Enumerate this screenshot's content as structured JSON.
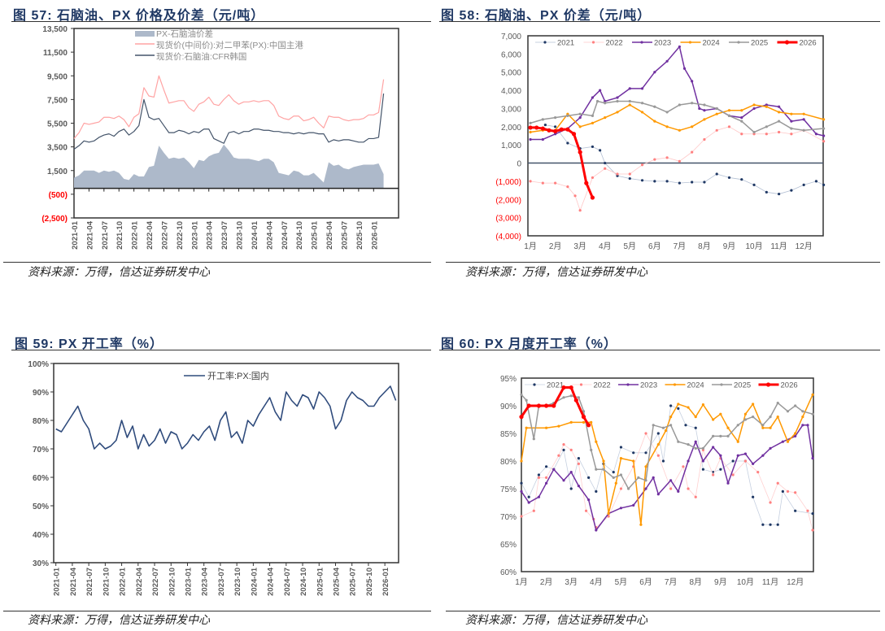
{
  "panels": {
    "fig57": {
      "title": "图 57:  石脑油、PX 价格及价差（元/吨）",
      "source": "资料来源：万得，信达证券研发中心"
    },
    "fig58": {
      "title": "图 58:  石脑油、PX 价差（元/吨）",
      "source": "资料来源：万得，信达证券研发中心"
    },
    "fig59": {
      "title": "图 59:  PX 开工率（%）",
      "source": "资料来源：万得，信达证券研发中心"
    },
    "fig60": {
      "title": "图 60:  PX 月度开工率（%）",
      "source": "资料来源：万得，信达证券研发中心"
    }
  },
  "chart_data": [
    {
      "id": "c57",
      "type": "line",
      "title": "石脑油、PX 价格及价差（元/吨）",
      "ylim": [
        -2500,
        13500
      ],
      "ytick_values": [
        13500,
        11500,
        9500,
        7500,
        5500,
        3500,
        1500,
        -500,
        -2500
      ],
      "ytick_labels": [
        "13,500",
        "11,500",
        "9,500",
        "7,500",
        "5,500",
        "3,500",
        "1,500",
        "(500)",
        "(2,500)"
      ],
      "xtick_labels": [
        "2021-01",
        "2021-04",
        "2021-07",
        "2021-10",
        "2022-01",
        "2022-04",
        "2022-07",
        "2022-10",
        "2023-01",
        "2023-04",
        "2023-07",
        "2023-10",
        "2024-01",
        "2024-04",
        "2024-07",
        "2024-10",
        "2025-01",
        "2025-04",
        "2025-07",
        "2025-10",
        "2026-01"
      ],
      "legend": [
        "PX-石脑油价差",
        "现货价(中间价):对二甲苯(PX):中国主港",
        "现货价:石脑油:CFR韩国"
      ],
      "colors": {
        "spread": "#adb9ca",
        "px": "#ffa3a3",
        "naphtha": "#44546a"
      },
      "px": [
        4200,
        4700,
        5500,
        5400,
        5500,
        5600,
        6000,
        6000,
        5900,
        6100,
        5800,
        5200,
        6000,
        6300,
        8500,
        7800,
        7700,
        9500,
        8300,
        7200,
        7300,
        7400,
        7400,
        6800,
        6500,
        7100,
        7300,
        7700,
        7100,
        7000,
        7500,
        7900,
        7400,
        7100,
        7300,
        7300,
        7400,
        7300,
        7400,
        7400,
        7000,
        6100,
        5900,
        5800,
        6100,
        6100,
        5700,
        5800,
        6000,
        5500,
        5100,
        6100,
        6000,
        6000,
        5800,
        5700,
        5800,
        5800,
        5900,
        6200,
        6200,
        6400,
        9200
      ],
      "naphtha": [
        3300,
        3600,
        4000,
        3900,
        4000,
        4300,
        4500,
        4600,
        4400,
        4800,
        5000,
        4500,
        4800,
        5300,
        7500,
        6000,
        5800,
        5900,
        5300,
        4700,
        4700,
        4900,
        4800,
        4600,
        4800,
        4700,
        5000,
        5000,
        4200,
        4000,
        3800,
        4700,
        4800,
        4600,
        4800,
        4800,
        5000,
        5000,
        4900,
        4900,
        4800,
        4800,
        4700,
        4700,
        4600,
        4700,
        4600,
        4700,
        4700,
        4600,
        4600,
        3900,
        4100,
        4000,
        4100,
        4100,
        4000,
        3900,
        3900,
        4200,
        4200,
        4300,
        8000
      ]
    },
    {
      "id": "c58",
      "type": "line",
      "title": "石脑油、PX 价差（元/吨）",
      "ylim": [
        -4000,
        7000
      ],
      "ytick_values": [
        7000,
        6000,
        5000,
        4000,
        3000,
        2000,
        1000,
        0,
        -1000,
        -2000,
        -3000,
        -4000
      ],
      "ytick_labels": [
        "7,000",
        "6,000",
        "5,000",
        "4,000",
        "3,000",
        "2,000",
        "1,000",
        "0",
        "(1,000)",
        "(2,000)",
        "(3,000)",
        "(4,000)"
      ],
      "xtick_labels": [
        "1月",
        "2月",
        "3月",
        "4月",
        "5月",
        "6月",
        "7月",
        "8月",
        "9月",
        "10月",
        "11月",
        "12月"
      ],
      "series": [
        {
          "name": "2021",
          "line_color": "#b4c0d4",
          "marker_color": "#1f3864",
          "x": [
            1.6,
            2,
            2.5,
            3,
            3.5,
            3.8,
            4,
            4.5,
            5,
            5.5,
            6,
            6.5,
            7,
            7.5,
            8,
            8.5,
            9,
            9.5,
            10,
            10.5,
            11,
            11.5,
            12,
            12.5,
            12.8
          ],
          "y": [
            2100,
            2000,
            1100,
            800,
            900,
            700,
            0,
            -700,
            -850,
            -950,
            -1000,
            -1000,
            -1100,
            -1050,
            -1050,
            -600,
            -800,
            -900,
            -1200,
            -1600,
            -1700,
            -1500,
            -1200,
            -1000,
            -1200
          ]
        },
        {
          "name": "2022",
          "line_color": "#ffc7c7",
          "marker_color": "#ff8080",
          "x": [
            1,
            1.5,
            2,
            2.5,
            2.8,
            3,
            3.5,
            4,
            4.5,
            5,
            5.5,
            6,
            6.5,
            7,
            7.5,
            8,
            8.5,
            9,
            9.5,
            10,
            10.5,
            11,
            11.5,
            12,
            12.8
          ],
          "y": [
            -1000,
            -1100,
            -1100,
            -1300,
            -1800,
            -2600,
            -800,
            -300,
            -600,
            -600,
            -100,
            200,
            300,
            100,
            600,
            1300,
            1800,
            2000,
            1600,
            1600,
            1600,
            1700,
            1600,
            1800,
            1200
          ]
        },
        {
          "name": "2023",
          "line_color": "#7030a0",
          "marker_color": "#7030a0",
          "x": [
            1,
            1.5,
            2,
            2.5,
            3,
            3.5,
            3.8,
            4,
            4.5,
            5,
            5.5,
            6,
            6.5,
            7,
            7.2,
            7.5,
            7.8,
            8,
            8.5,
            9,
            9.5,
            10,
            10.5,
            11,
            11.5,
            12,
            12.5,
            12.8
          ],
          "y": [
            1300,
            1300,
            1600,
            1900,
            2500,
            3600,
            4000,
            3400,
            3600,
            4100,
            4100,
            5000,
            5600,
            6400,
            5200,
            4500,
            3000,
            2900,
            3000,
            2600,
            2500,
            3000,
            3200,
            3100,
            2300,
            2400,
            1600,
            1500
          ]
        },
        {
          "name": "2024",
          "line_color": "#ff9900",
          "marker_color": "#ff9900",
          "x": [
            1,
            1.5,
            2,
            2.5,
            3,
            3.5,
            4,
            4.5,
            5,
            5.5,
            6,
            6.5,
            7,
            7.5,
            8,
            8.5,
            9,
            9.5,
            10,
            10.5,
            11,
            11.5,
            12,
            12.8
          ],
          "y": [
            1700,
            1800,
            1800,
            2700,
            2000,
            2200,
            2500,
            2800,
            3200,
            2800,
            2300,
            2000,
            1800,
            2000,
            2400,
            2700,
            2900,
            2900,
            3200,
            3100,
            2800,
            2700,
            2700,
            2400
          ]
        },
        {
          "name": "2025",
          "line_color": "#999999",
          "marker_color": "#999999",
          "x": [
            1,
            1.5,
            2,
            2.5,
            3,
            3.5,
            3.7,
            4,
            4.5,
            5,
            5.5,
            6,
            6.5,
            7,
            7.5,
            8,
            8.5,
            9,
            9.5,
            10,
            10.5,
            11,
            11.5,
            12,
            12.8
          ],
          "y": [
            2200,
            2400,
            2500,
            2600,
            2700,
            2600,
            3400,
            3300,
            3400,
            3400,
            3300,
            3100,
            2800,
            3200,
            3300,
            3200,
            3000,
            2600,
            2300,
            1700,
            2000,
            2300,
            1900,
            1800,
            1900
          ]
        },
        {
          "name": "2026",
          "line_color": "#ff0000",
          "marker_color": "#ff0000",
          "x": [
            1,
            1.25,
            1.5,
            1.75,
            2,
            2.25,
            2.5,
            2.75,
            3,
            3.25,
            3.5
          ],
          "y": [
            1950,
            1950,
            1900,
            1800,
            1750,
            1850,
            1850,
            1600,
            600,
            -1100,
            -1900
          ]
        }
      ]
    },
    {
      "id": "c59",
      "type": "line",
      "title": "PX 开工率（%）",
      "ylim": [
        30,
        100
      ],
      "ytick_values": [
        100,
        90,
        80,
        70,
        60,
        50,
        40,
        30
      ],
      "ytick_labels": [
        "100%",
        "90%",
        "80%",
        "70%",
        "60%",
        "50%",
        "40%",
        "30%"
      ],
      "xtick_labels": [
        "2021-01",
        "2021-04",
        "2021-07",
        "2021-10",
        "2022-01",
        "2022-04",
        "2022-07",
        "2022-10",
        "2023-01",
        "2023-04",
        "2023-07",
        "2023-10",
        "2024-01",
        "2024-04",
        "2024-07",
        "2024-10",
        "2025-01",
        "2025-04",
        "2025-07",
        "2025-10",
        "2026-01"
      ],
      "legend": [
        "开工率:PX:国内"
      ],
      "color": "#2f4b7c",
      "values": [
        77,
        76,
        79,
        82,
        85,
        80,
        77,
        70,
        72,
        70,
        71,
        73,
        80,
        74,
        78,
        70,
        75,
        71,
        73,
        77,
        72,
        76,
        75,
        70,
        72,
        75,
        73,
        76,
        78,
        73,
        80,
        83,
        74,
        76,
        72,
        80,
        78,
        82,
        85,
        88,
        83,
        80,
        90,
        87,
        85,
        89,
        88,
        84,
        90,
        88,
        85,
        77,
        80,
        87,
        90,
        88,
        87,
        85,
        85,
        88,
        90,
        92,
        87
      ]
    },
    {
      "id": "c60",
      "type": "line",
      "title": "PX 月度开工率（%）",
      "ylim": [
        60,
        95
      ],
      "ytick_values": [
        95,
        90,
        85,
        80,
        75,
        70,
        65,
        60
      ],
      "ytick_labels": [
        "95%",
        "90%",
        "85%",
        "80%",
        "75%",
        "70%",
        "65%",
        "60%"
      ],
      "xtick_labels": [
        "1月",
        "2月",
        "3月",
        "4月",
        "5月",
        "6月",
        "7月",
        "8月",
        "9月",
        "10月",
        "11月",
        "12月"
      ],
      "series": [
        {
          "name": "2021",
          "line_color": "#c6d0e0",
          "marker_color": "#1f3864",
          "x": [
            1,
            1.3,
            1.7,
            2,
            2.3,
            2.7,
            3,
            3.3,
            3.7,
            4,
            4.3,
            4.7,
            5,
            5.5,
            6,
            6.5,
            6.7,
            7,
            7.3,
            7.6,
            8,
            8.3,
            8.7,
            9,
            9.5,
            10,
            10.3,
            10.7,
            11,
            11.3,
            11.5,
            12,
            12.7
          ],
          "y": [
            76,
            73.5,
            77.5,
            79,
            78.5,
            82,
            75,
            80.5,
            77,
            74.5,
            79.5,
            78,
            82.5,
            81.5,
            81.5,
            85,
            80,
            90,
            89.5,
            86.5,
            86,
            78.5,
            78,
            78.5,
            80,
            80,
            73.5,
            68.5,
            68.5,
            68.5,
            74.5,
            71,
            70.5
          ]
        },
        {
          "name": "2022",
          "line_color": "#ffd0d0",
          "marker_color": "#ff8080",
          "x": [
            1,
            1.5,
            1.7,
            2,
            2.5,
            2.7,
            3,
            3.3,
            3.6,
            3.9,
            4,
            4.5,
            5,
            5.5,
            6,
            6.5,
            7,
            7.5,
            7.7,
            8,
            8.3,
            8.7,
            9,
            9.5,
            10,
            10.5,
            11,
            11.3,
            11.7,
            12,
            12.5,
            12.7
          ],
          "y": [
            70,
            71,
            77,
            77,
            81,
            83,
            82,
            79.5,
            71,
            69.5,
            68,
            70,
            75,
            79,
            85,
            81,
            75,
            79,
            75,
            73.5,
            82,
            77.5,
            80.5,
            77.5,
            80,
            78,
            72.5,
            76,
            74.5,
            74.3,
            71,
            67.5
          ]
        },
        {
          "name": "2023",
          "line_color": "#7030a0",
          "marker_color": "#7030a0",
          "x": [
            1,
            1.3,
            1.7,
            2,
            2.3,
            2.7,
            3,
            3.3,
            3.7,
            4,
            4.5,
            5,
            5.5,
            6,
            6.3,
            6.5,
            7,
            7.3,
            7.7,
            8,
            8.3,
            8.7,
            9,
            9.3,
            9.7,
            10,
            10.3,
            10.7,
            11,
            11.5,
            12,
            12.3,
            12.5,
            12.7
          ],
          "y": [
            74.5,
            72.5,
            73.5,
            76,
            78.5,
            76.5,
            78,
            75.5,
            73,
            67.5,
            70.5,
            71.5,
            72,
            75,
            77,
            74,
            76.5,
            74.5,
            80,
            83.5,
            80,
            82.5,
            81,
            76,
            81,
            81.3,
            79.5,
            81,
            82.3,
            83.5,
            84.5,
            86.5,
            86.5,
            80.5
          ]
        },
        {
          "name": "2024",
          "line_color": "#ff9900",
          "marker_color": "#ff9900",
          "x": [
            1,
            1.2,
            2,
            2.5,
            3,
            3.5,
            3.8,
            4,
            4.3,
            4.5,
            4.8,
            5,
            5.5,
            5.8,
            6,
            6.5,
            6.8,
            7,
            7.3,
            7.7,
            8,
            8.3,
            8.7,
            9,
            9.3,
            9.7,
            10,
            10.3,
            10.7,
            11,
            11.3,
            11.7,
            12,
            12.3,
            12.7
          ],
          "y": [
            80,
            86,
            86,
            86.3,
            87,
            87,
            87,
            83.5,
            80,
            70.5,
            76,
            80.5,
            80,
            68.5,
            79,
            83,
            85.5,
            88,
            90.3,
            89.7,
            88,
            90.2,
            87.5,
            88.5,
            86,
            83.5,
            88.5,
            90.3,
            86,
            86,
            88,
            83.5,
            85,
            88,
            92
          ]
        },
        {
          "name": "2025",
          "line_color": "#999999",
          "marker_color": "#999999",
          "x": [
            1,
            1.2,
            1.5,
            1.7,
            2,
            2.3,
            2.7,
            3,
            3.3,
            3.5,
            3.8,
            4,
            4.3,
            4.7,
            5,
            5.3,
            5.7,
            6,
            6.3,
            6.7,
            7,
            7.3,
            7.7,
            8,
            8.3,
            8.7,
            9,
            9.3,
            9.7,
            10,
            10.3,
            10.7,
            11,
            11.3,
            11.7,
            12,
            12.3,
            12.7
          ],
          "y": [
            92,
            91,
            84,
            90,
            90,
            90.5,
            91.5,
            91.8,
            91.5,
            89,
            82,
            78.5,
            78.5,
            77,
            77.5,
            75,
            77,
            76.5,
            86.5,
            86,
            86.5,
            83.5,
            83,
            82.3,
            82.3,
            84.5,
            84.5,
            84.5,
            86.5,
            87.5,
            88,
            86.5,
            88,
            90.5,
            89,
            90,
            89,
            88.5
          ]
        },
        {
          "name": "2026",
          "line_color": "#ff0000",
          "marker_color": "#ff0000",
          "x": [
            1,
            1.3,
            1.7,
            2,
            2.3,
            2.7,
            3,
            3.2,
            3.5,
            3.7
          ],
          "y": [
            88,
            90,
            90,
            90,
            90,
            93.3,
            93.3,
            91,
            88,
            86.5
          ]
        }
      ]
    }
  ]
}
